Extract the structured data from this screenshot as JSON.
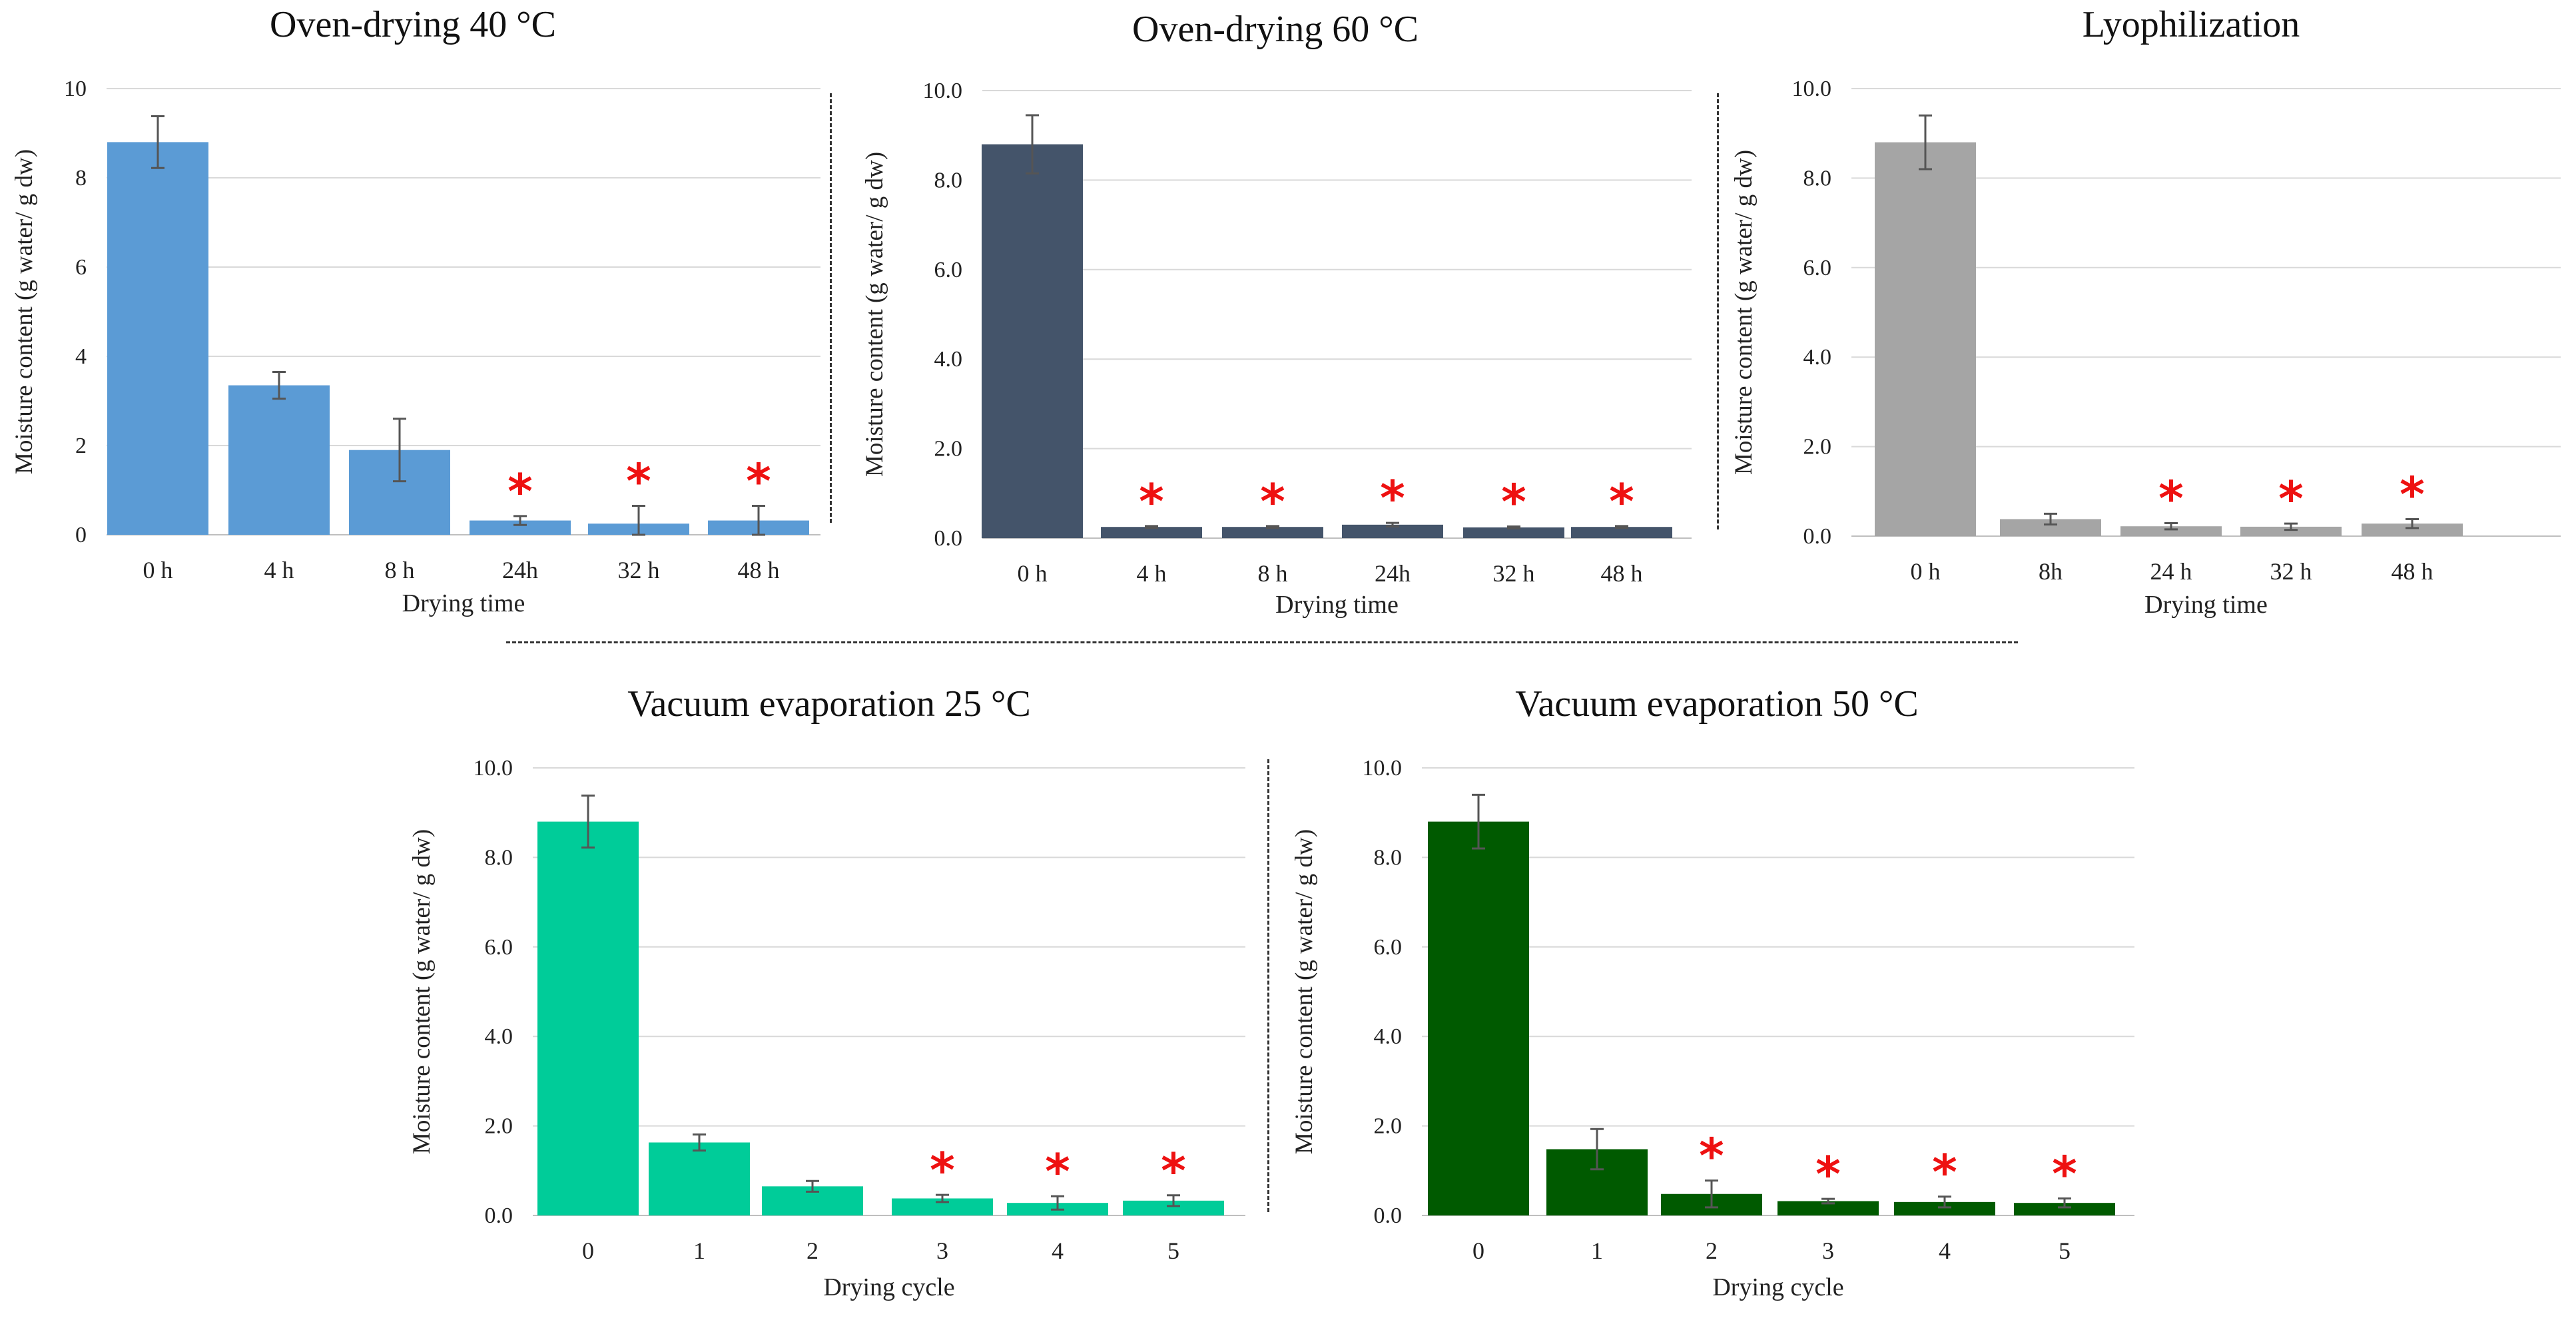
{
  "chart_data": [
    {
      "type": "bar",
      "title": "Oven-drying 40 °C",
      "xlabel": "Drying time",
      "ylabel": "Moisture content (g water/ g dw)",
      "ylim": [
        0,
        10
      ],
      "yticks": [
        "0",
        "2",
        "4",
        "6",
        "8",
        "10"
      ],
      "grid": true,
      "color": "#5b9bd5",
      "categories": [
        "0 h",
        "4 h",
        "8 h",
        "24h",
        "32 h",
        "48 h"
      ],
      "values": [
        8.8,
        3.35,
        1.9,
        0.32,
        0.25,
        0.32
      ],
      "errors": [
        0.58,
        0.3,
        0.7,
        0.1,
        0.4,
        0.33
      ],
      "significant": [
        false,
        false,
        false,
        true,
        true,
        true
      ],
      "marker": "*"
    },
    {
      "type": "bar",
      "title": "Oven-drying 60 °C",
      "xlabel": "Drying time",
      "ylabel": "Moisture content (g water/ g dw)",
      "ylim": [
        0,
        10
      ],
      "yticks": [
        "0.0",
        "2.0",
        "4.0",
        "6.0",
        "8.0",
        "10.0"
      ],
      "grid": true,
      "color": "#44546a",
      "categories": [
        "0 h",
        "4 h",
        "8 h",
        "24h",
        "32 h",
        "48 h"
      ],
      "values": [
        8.8,
        0.25,
        0.25,
        0.3,
        0.24,
        0.25
      ],
      "errors": [
        0.65,
        0.02,
        0.02,
        0.04,
        0.02,
        0.02
      ],
      "significant": [
        false,
        true,
        true,
        true,
        true,
        true
      ],
      "marker": "*"
    },
    {
      "type": "bar",
      "title": "Lyophilization",
      "xlabel": "Drying time",
      "ylabel": "Moisture content (g water/ g dw)",
      "ylim": [
        0,
        10
      ],
      "yticks": [
        "0.0",
        "2.0",
        "4.0",
        "6.0",
        "8.0",
        "10.0"
      ],
      "grid": true,
      "color": "#a5a5a5",
      "categories": [
        "0 h",
        "8h",
        "24 h",
        "32 h",
        "48 h"
      ],
      "values": [
        8.8,
        0.38,
        0.22,
        0.21,
        0.28
      ],
      "errors": [
        0.6,
        0.12,
        0.07,
        0.07,
        0.1
      ],
      "significant": [
        false,
        false,
        true,
        true,
        true
      ],
      "marker": "*"
    },
    {
      "type": "bar",
      "title": "Vacuum evaporation 25 °C",
      "xlabel": "Drying cycle",
      "ylabel": "Moisture content (g water/ g dw)",
      "ylim": [
        0,
        10
      ],
      "yticks": [
        "0.0",
        "2.0",
        "4.0",
        "6.0",
        "8.0",
        "10.0"
      ],
      "grid": true,
      "color": "#00cc99",
      "categories": [
        "0",
        "1",
        "2",
        "3",
        "4",
        "5"
      ],
      "values": [
        8.8,
        1.63,
        0.65,
        0.38,
        0.28,
        0.33
      ],
      "errors": [
        0.58,
        0.18,
        0.12,
        0.08,
        0.15,
        0.12
      ],
      "significant": [
        false,
        false,
        false,
        true,
        true,
        true
      ],
      "marker": "*"
    },
    {
      "type": "bar",
      "title": "Vacuum evaporation 50 °C",
      "xlabel": "Drying cycle",
      "ylabel": "Moisture content (g water/ g dw)",
      "ylim": [
        0,
        10
      ],
      "yticks": [
        "0.0",
        "2.0",
        "4.0",
        "6.0",
        "8.0",
        "10.0"
      ],
      "grid": true,
      "color": "#005a00",
      "categories": [
        "0",
        "1",
        "2",
        "3",
        "4",
        "5"
      ],
      "values": [
        8.8,
        1.48,
        0.48,
        0.32,
        0.3,
        0.28
      ],
      "errors": [
        0.6,
        0.45,
        0.3,
        0.05,
        0.12,
        0.1
      ],
      "significant": [
        false,
        false,
        true,
        true,
        true,
        true
      ],
      "marker": "*"
    }
  ]
}
